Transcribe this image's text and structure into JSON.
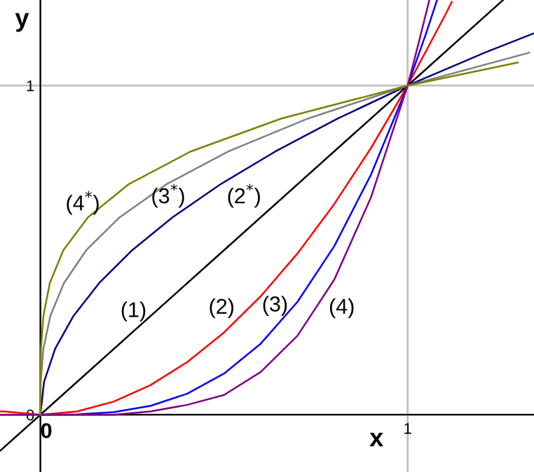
{
  "chart_data": {
    "type": "line",
    "xlabel": "x",
    "ylabel": "y",
    "xlim": [
      -0.11,
      1.344
    ],
    "ylim": [
      -0.174,
      1.26
    ],
    "xticks": [
      0,
      1
    ],
    "yticks": [
      0,
      1
    ],
    "grid": true,
    "line_style": "solid",
    "series": [
      {
        "color": "#000000",
        "x": [
          -0.11,
          0,
          0.5,
          1,
          1.26
        ],
        "values": [
          -0.11,
          0,
          0.5,
          1,
          1.26
        ]
      },
      {
        "color": "#ff0000",
        "x": [
          -0.11,
          -0.1,
          0,
          0.1,
          0.2,
          0.3,
          0.4,
          0.5,
          0.6,
          0.7,
          0.8,
          0.9,
          1,
          1.1,
          1.12
        ],
        "values": [
          0.01,
          0.01,
          0,
          0.01,
          0.04,
          0.09,
          0.16,
          0.25,
          0.36,
          0.49,
          0.64,
          0.81,
          1,
          1.21,
          1.254
        ]
      },
      {
        "color": "#0000ff",
        "x": [
          0,
          0.1,
          0.2,
          0.3,
          0.4,
          0.5,
          0.6,
          0.7,
          0.8,
          0.9,
          1,
          1.05,
          1.08
        ],
        "values": [
          0,
          0.001,
          0.008,
          0.027,
          0.064,
          0.125,
          0.216,
          0.343,
          0.512,
          0.729,
          1,
          1.158,
          1.26
        ]
      },
      {
        "color": "#800080",
        "x": [
          -0.11,
          -0.1,
          0,
          0.1,
          0.2,
          0.3,
          0.4,
          0.5,
          0.6,
          0.7,
          0.8,
          0.9,
          1,
          1.03,
          1.059
        ],
        "values": [
          0,
          0,
          0,
          0,
          0,
          0.01,
          0.03,
          0.06,
          0.13,
          0.24,
          0.41,
          0.66,
          1,
          1.13,
          1.26
        ]
      },
      {
        "color": "#000080",
        "x": [
          0,
          0.01,
          0.04,
          0.09,
          0.16,
          0.25,
          0.36,
          0.49,
          0.64,
          0.81,
          1,
          1.21,
          1.344
        ],
        "values": [
          0,
          0.1,
          0.2,
          0.3,
          0.4,
          0.5,
          0.6,
          0.7,
          0.8,
          0.9,
          1,
          1.1,
          1.159
        ]
      },
      {
        "color": "#808080",
        "x": [
          0,
          0.001,
          0.008,
          0.027,
          0.064,
          0.125,
          0.216,
          0.343,
          0.512,
          0.729,
          1,
          1.331
        ],
        "values": [
          0,
          0.1,
          0.2,
          0.3,
          0.4,
          0.5,
          0.6,
          0.7,
          0.8,
          0.9,
          1,
          1.1
        ]
      },
      {
        "color": "#808000",
        "x": [
          0,
          0.0001,
          0.0016,
          0.0081,
          0.0256,
          0.0625,
          0.1296,
          0.2401,
          0.4096,
          0.6561,
          1,
          1.3
        ],
        "values": [
          0,
          0.1,
          0.2,
          0.3,
          0.4,
          0.5,
          0.6,
          0.7,
          0.8,
          0.9,
          1,
          1.07
        ]
      }
    ],
    "annotations": [
      "(1)",
      "(2)",
      "(3)",
      "(4)",
      "(4$^{*}$)",
      "(3$^{*}$)",
      "(2$^{*}$)"
    ]
  }
}
